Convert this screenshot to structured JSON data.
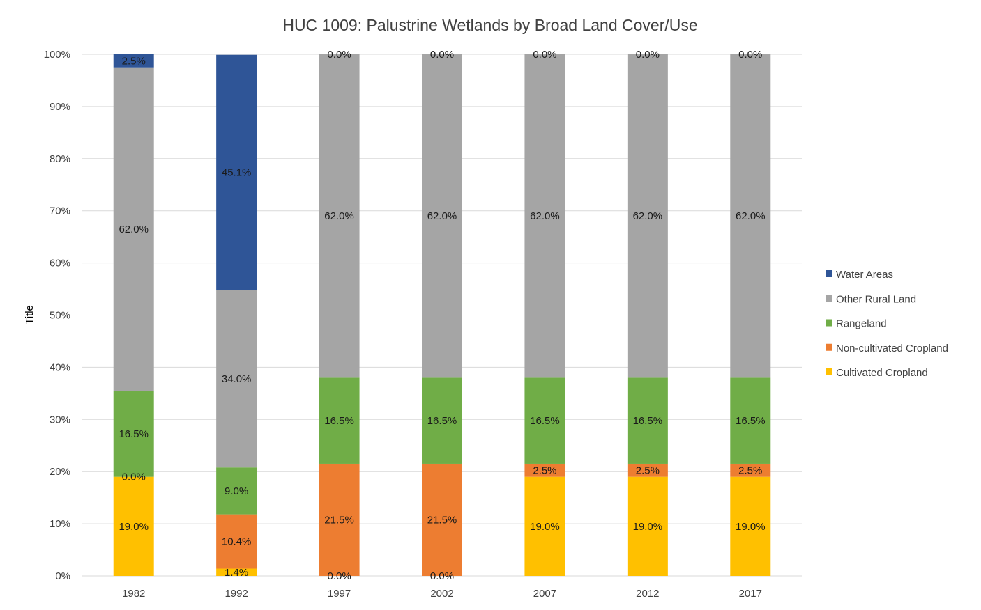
{
  "chart_data": {
    "type": "bar",
    "stacked": true,
    "percent": true,
    "title": "HUC 1009: Palustrine Wetlands by Broad Land Cover/Use",
    "xlabel": "",
    "ylabel": "Title",
    "ylim": [
      0,
      100
    ],
    "yticks": [
      "0%",
      "10%",
      "20%",
      "30%",
      "40%",
      "50%",
      "60%",
      "70%",
      "80%",
      "90%",
      "100%"
    ],
    "grid": true,
    "legend_position": "right",
    "categories": [
      "1982",
      "1992",
      "1997",
      "2002",
      "2007",
      "2012",
      "2017"
    ],
    "series": [
      {
        "name": "Cultivated Cropland",
        "color": "#FFC000",
        "values": [
          19.0,
          1.4,
          0.0,
          0.0,
          19.0,
          19.0,
          19.0
        ],
        "labels": [
          "19.0%",
          "1.4%",
          "0.0%",
          "0.0%",
          "19.0%",
          "19.0%",
          "19.0%"
        ]
      },
      {
        "name": "Non-cultivated Cropland",
        "color": "#ED7D31",
        "values": [
          0.0,
          10.4,
          21.5,
          21.5,
          2.5,
          2.5,
          2.5
        ],
        "labels": [
          "0.0%",
          "10.4%",
          "21.5%",
          "21.5%",
          "2.5%",
          "2.5%",
          "2.5%"
        ]
      },
      {
        "name": "Rangeland",
        "color": "#70AD47",
        "values": [
          16.5,
          9.0,
          16.5,
          16.5,
          16.5,
          16.5,
          16.5
        ],
        "labels": [
          "16.5%",
          "9.0%",
          "16.5%",
          "16.5%",
          "16.5%",
          "16.5%",
          "16.5%"
        ]
      },
      {
        "name": "Other Rural Land",
        "color": "#A5A5A5",
        "values": [
          62.0,
          34.0,
          62.0,
          62.0,
          62.0,
          62.0,
          62.0
        ],
        "labels": [
          "62.0%",
          "34.0%",
          "62.0%",
          "62.0%",
          "62.0%",
          "62.0%",
          "62.0%"
        ]
      },
      {
        "name": "Water Areas",
        "color": "#2F5597",
        "values": [
          2.5,
          45.1,
          0.0,
          0.0,
          0.0,
          0.0,
          0.0
        ],
        "labels": [
          "2.5%",
          "45.1%",
          "0.0%",
          "0.0%",
          "0.0%",
          "0.0%",
          "0.0%"
        ]
      }
    ],
    "legend_order": [
      "Water Areas",
      "Other Rural Land",
      "Rangeland",
      "Non-cultivated Cropland",
      "Cultivated Cropland"
    ],
    "gridline_color": "#D9D9D9"
  }
}
